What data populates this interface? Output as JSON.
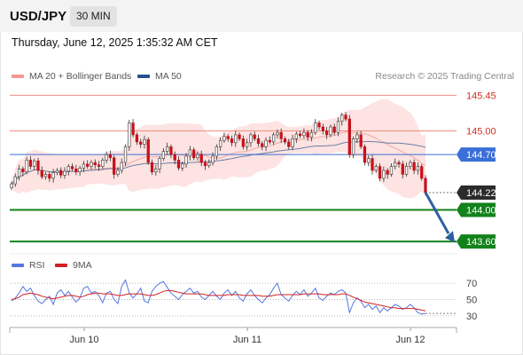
{
  "header": {
    "symbol": "USD/JPY",
    "timeframe": "30 MIN"
  },
  "timestamp": "Thursday, June 12, 2025 1:35:32 AM CET",
  "legend": {
    "ma_bollinger": "MA 20 + Bollinger Bands",
    "ma50": "MA 50",
    "credit": "Research © 2025 Trading Central",
    "rsi": "RSI",
    "rsi_ma": "9MA"
  },
  "colors": {
    "resistance": "#f08c84",
    "support": "#12821a",
    "pivot": "#3a6fd8",
    "candle": "#c8101a",
    "band_fill": "#fde0de",
    "ma50": "#6d7fa6",
    "rsi": "#5577e0",
    "rsi_ma": "#d42020",
    "arrow": "#2f5fa0"
  },
  "chart_data": [
    {
      "type": "candlestick",
      "title": "USD/JPY 30 MIN",
      "x_ticks": [
        "Jun 10",
        "Jun 11",
        "Jun 12"
      ],
      "ylim": [
        143.4,
        145.6
      ],
      "levels": [
        {
          "label": "145.45",
          "value": 145.45,
          "kind": "resistance"
        },
        {
          "label": "145.00",
          "value": 145.0,
          "kind": "resistance"
        },
        {
          "label": "144.70",
          "value": 144.7,
          "kind": "pivot"
        },
        {
          "label": "144.22",
          "value": 144.22,
          "kind": "last"
        },
        {
          "label": "144.00",
          "value": 144.0,
          "kind": "support"
        },
        {
          "label": "143.60",
          "value": 143.6,
          "kind": "support"
        }
      ],
      "close": [
        144.33,
        144.42,
        144.52,
        144.48,
        144.63,
        144.55,
        144.62,
        144.5,
        144.42,
        144.45,
        144.4,
        144.47,
        144.5,
        144.44,
        144.49,
        144.55,
        144.52,
        144.48,
        144.53,
        144.58,
        144.55,
        144.6,
        144.57,
        144.55,
        144.63,
        144.7,
        144.66,
        144.45,
        144.5,
        144.6,
        144.8,
        145.1,
        144.95,
        144.86,
        144.83,
        144.89,
        144.6,
        144.48,
        144.52,
        144.65,
        144.74,
        144.8,
        144.7,
        144.63,
        144.53,
        144.58,
        144.68,
        144.76,
        144.66,
        144.7,
        144.6,
        144.56,
        144.6,
        144.68,
        144.8,
        144.88,
        144.93,
        144.9,
        144.85,
        144.95,
        144.9,
        144.8,
        144.85,
        144.95,
        144.9,
        144.84,
        144.8,
        144.88,
        144.86,
        144.95,
        144.98,
        144.9,
        144.86,
        144.8,
        144.9,
        144.96,
        144.94,
        144.98,
        144.92,
        144.98,
        145.1,
        145.05,
        145.0,
        144.95,
        145.05,
        144.98,
        145.12,
        145.2,
        145.15,
        144.7,
        144.9,
        144.95,
        144.8,
        144.6,
        144.65,
        144.5,
        144.55,
        144.4,
        144.5,
        144.45,
        144.55,
        144.6,
        144.58,
        144.45,
        144.55,
        144.6,
        144.5,
        144.55,
        144.4,
        144.22
      ],
      "support_projection": {
        "from": 144.22,
        "to": 143.6
      }
    },
    {
      "type": "line",
      "title": "RSI",
      "y_ticks": [
        30,
        50,
        70
      ],
      "ylim": [
        20,
        80
      ],
      "series": [
        {
          "name": "RSI",
          "values": [
            48,
            52,
            58,
            66,
            60,
            64,
            55,
            48,
            45,
            50,
            54,
            44,
            58,
            62,
            55,
            60,
            53,
            47,
            52,
            64,
            66,
            58,
            60,
            55,
            46,
            58,
            60,
            50,
            45,
            66,
            74,
            58,
            52,
            57,
            64,
            48,
            46,
            60,
            66,
            70,
            72,
            65,
            58,
            54,
            50,
            56,
            60,
            64,
            58,
            60,
            53,
            50,
            55,
            60,
            54,
            50,
            58,
            62,
            55,
            60,
            52,
            48,
            57,
            62,
            55,
            50,
            46,
            52,
            56,
            64,
            70,
            56,
            52,
            48,
            55,
            60,
            56,
            62,
            54,
            58,
            64,
            52,
            49,
            54,
            58,
            56,
            60,
            62,
            58,
            34,
            46,
            52,
            48,
            40,
            44,
            38,
            42,
            34,
            40,
            36,
            40,
            44,
            42,
            38,
            40,
            44,
            40,
            34,
            32,
            33
          ]
        },
        {
          "name": "9MA",
          "values": [
            50,
            51,
            53,
            56,
            57,
            58,
            57,
            56,
            54,
            53,
            52,
            51,
            52,
            53,
            54,
            55,
            55,
            54,
            53,
            54,
            56,
            57,
            58,
            58,
            57,
            57,
            57,
            56,
            55,
            55,
            56,
            57,
            57,
            57,
            57,
            56,
            55,
            55,
            56,
            58,
            60,
            61,
            61,
            60,
            59,
            58,
            57,
            57,
            57,
            57,
            57,
            56,
            55,
            55,
            55,
            55,
            55,
            56,
            56,
            56,
            56,
            55,
            55,
            55,
            55,
            55,
            54,
            54,
            54,
            55,
            56,
            56,
            56,
            56,
            56,
            56,
            56,
            57,
            57,
            57,
            57,
            57,
            56,
            56,
            56,
            56,
            56,
            57,
            57,
            55,
            53,
            51,
            49,
            47,
            46,
            45,
            44,
            43,
            42,
            41,
            40,
            40,
            39,
            39,
            39,
            39,
            39,
            38,
            37,
            36
          ]
        }
      ]
    }
  ]
}
